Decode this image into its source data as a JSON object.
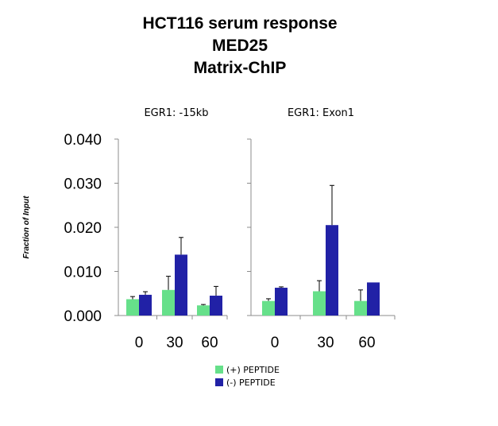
{
  "chart_data": {
    "type": "bar",
    "title": [
      "HCT116 serum response",
      "MED25",
      "Matrix-ChIP"
    ],
    "ylabel": "Fraction of Input",
    "ylim": [
      0,
      0.04
    ],
    "yticks": [
      "0.000",
      "0.010",
      "0.020",
      "0.030",
      "0.040"
    ],
    "legend": {
      "position": "bottom",
      "entries": [
        {
          "name": "(+) PEPTIDE",
          "color": "#66e08a"
        },
        {
          "name": "(-) PEPTIDE",
          "color": "#2121a6"
        }
      ]
    },
    "panels": [
      {
        "title": "EGR1: -15kb",
        "categories": [
          "0",
          "30",
          "60"
        ],
        "series": [
          {
            "name": "(+) PEPTIDE",
            "color": "#66e08a",
            "values": [
              0.0037,
              0.0058,
              0.0023
            ],
            "errors": [
              0.0006,
              0.0031,
              0.0002
            ]
          },
          {
            "name": "(-) PEPTIDE",
            "color": "#2121a6",
            "values": [
              0.0047,
              0.0138,
              0.0045
            ],
            "errors": [
              0.0007,
              0.0039,
              0.0021
            ]
          }
        ]
      },
      {
        "title": "EGR1: Exon1",
        "categories": [
          "0",
          "30",
          "60"
        ],
        "series": [
          {
            "name": "(+) PEPTIDE",
            "color": "#66e08a",
            "values": [
              0.0033,
              0.0055,
              0.0033
            ],
            "errors": [
              0.0005,
              0.0024,
              0.0025
            ]
          },
          {
            "name": "(-) PEPTIDE",
            "color": "#2121a6",
            "values": [
              0.0063,
              0.0205,
              0.0075
            ],
            "errors": [
              0.0002,
              0.009,
              0.0
            ]
          }
        ]
      }
    ]
  }
}
